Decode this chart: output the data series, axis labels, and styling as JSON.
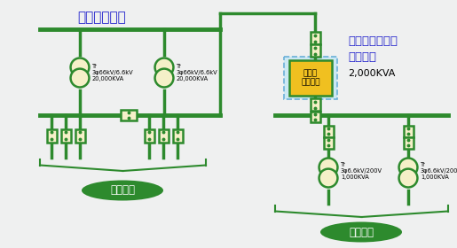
{
  "bg_color": "#eff0f0",
  "green": "#2d8a2d",
  "light_yellow": "#f5f0c8",
  "gold_yellow": "#f0c020",
  "light_blue_bg": "#cce8f4",
  "blue_text": "#2222cc",
  "title_tokko": "特高トランス",
  "title_kosatsu1": "高圧ユニセーフ",
  "title_kosatsu2": "システム",
  "kva_2000": "2,000KVA",
  "kosatsu_box_label": "高圧ユ\nニセーフ",
  "tr1_label": "Tr\n3φ66kV/6.6kV\n20,000KVA",
  "tr2_label": "Tr\n3φ66kV/6.6kV\n20,000KVA",
  "tr3_label": "Tr\n3φ6.6kV/200V\n1,000KVA",
  "tr4_label": "Tr\n3φ6.6kV/200V\n1,000KVA",
  "label_ippan": "一般負荷",
  "label_taisho": "対象負荷",
  "lw_bus": 3.5,
  "lw_wire": 2.5,
  "lw_element": 1.8
}
